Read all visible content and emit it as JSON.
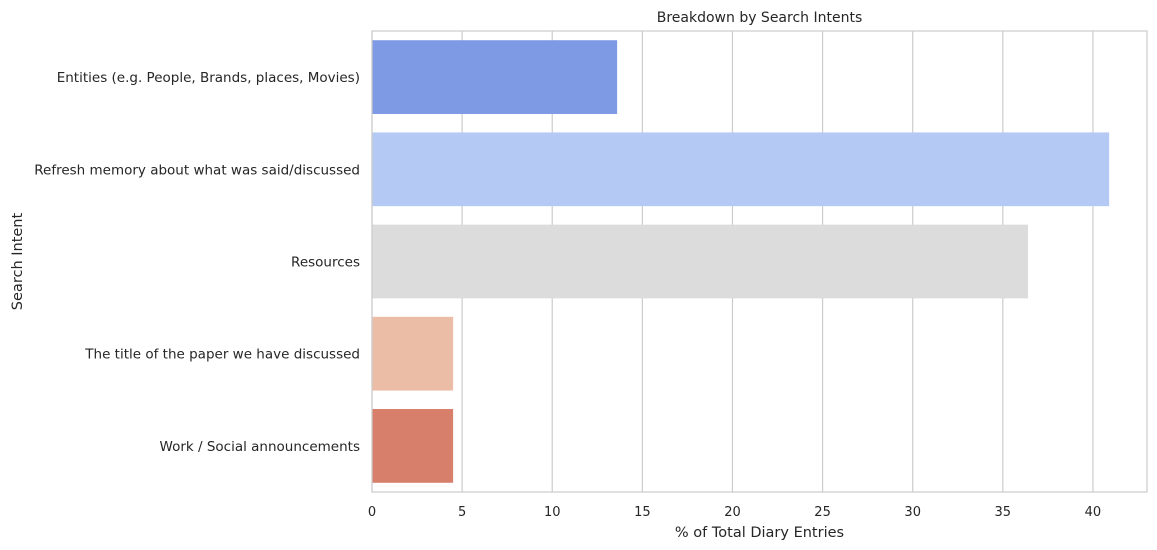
{
  "chart_data": {
    "type": "bar",
    "orientation": "horizontal",
    "title": "Breakdown by Search Intents",
    "xlabel": "% of Total Diary Entries",
    "ylabel": "Search Intent",
    "categories": [
      "Entities (e.g. People, Brands, places, Movies)",
      "Refresh memory about what was said/discussed",
      "Resources",
      "The title of the paper we have discussed",
      "Work / Social announcements"
    ],
    "values": [
      13.6,
      40.9,
      36.4,
      4.5,
      4.5
    ],
    "colors": [
      "#7f9ae4",
      "#b4caf4",
      "#dcdcdc",
      "#ecbda6",
      "#d77f6b"
    ],
    "xlim": [
      0,
      43
    ],
    "xticks": [
      0,
      5,
      10,
      15,
      20,
      25,
      30,
      35,
      40
    ],
    "grid": "vertical",
    "legend": "none"
  }
}
